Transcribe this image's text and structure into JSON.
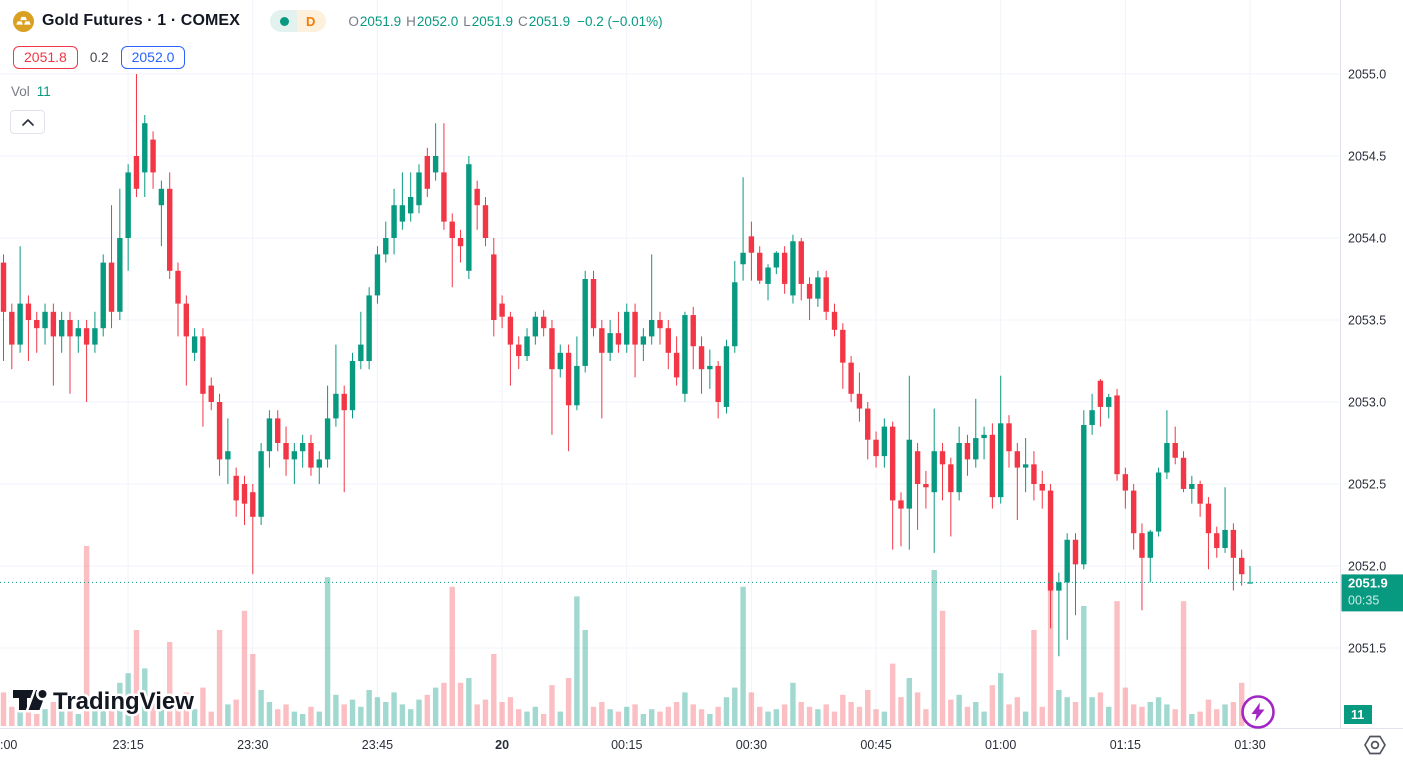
{
  "header": {
    "symbol_title": "Gold Futures · 1 · COMEX",
    "market_status_icon": "market-open-dot",
    "interval_badge": "D",
    "ohlc": {
      "o_label": "O",
      "o_value": "2051.9",
      "h_label": "H",
      "h_value": "2052.0",
      "l_label": "L",
      "l_value": "2051.9",
      "c_label": "C",
      "c_value": "2051.9",
      "change": "−0.2 (−0.01%)"
    },
    "sell_price": "2051.8",
    "spread": "0.2",
    "buy_price": "2052.0",
    "indicator_label": "Vol",
    "indicator_value": "11"
  },
  "footer": {
    "logo_text": "TradingView"
  },
  "price_axis": {
    "last_price_label": "2051.9",
    "countdown": "00:35",
    "volume_badge": "11"
  },
  "colors": {
    "up": "#089981",
    "down": "#f23645",
    "accent_sell": "#f23645",
    "accent_buy": "#2962ff",
    "gold_icon": "#D9A021",
    "interval_text": "#f57d00",
    "lightning_purple": "#a126c4",
    "grid": "#f0f3fa",
    "axis_text": "#2a2e39"
  },
  "chart_data": {
    "type": "candlestick",
    "title": "Gold Futures 1-minute chart with volume",
    "symbol": "Gold Futures",
    "interval": "1",
    "exchange": "COMEX",
    "legend": [
      "price candles",
      "Vol"
    ],
    "y_ticks": [
      2055.0,
      2054.5,
      2054.0,
      2053.5,
      2053.0,
      2052.5,
      2052.0,
      2051.5
    ],
    "ylim": [
      2051.4,
      2055.1
    ],
    "x_tick_labels": [
      {
        "index": 0,
        "label": ":00",
        "bold": false
      },
      {
        "index": 15,
        "label": "23:15",
        "bold": false
      },
      {
        "index": 30,
        "label": "23:30",
        "bold": false
      },
      {
        "index": 45,
        "label": "23:45",
        "bold": false
      },
      {
        "index": 60,
        "label": "20",
        "bold": true
      },
      {
        "index": 75,
        "label": "00:15",
        "bold": false
      },
      {
        "index": 90,
        "label": "00:30",
        "bold": false
      },
      {
        "index": 105,
        "label": "00:45",
        "bold": false
      },
      {
        "index": 120,
        "label": "01:00",
        "bold": false
      },
      {
        "index": 135,
        "label": "01:15",
        "bold": false
      },
      {
        "index": 150,
        "label": "01:30",
        "bold": false
      }
    ],
    "last_price": 2051.9,
    "countdown": "00:35",
    "last_volume": 11,
    "candles_format": [
      "open",
      "high",
      "low",
      "close",
      "volume"
    ],
    "candles": [
      [
        2053.85,
        2053.9,
        2053.25,
        2053.55,
        14
      ],
      [
        2053.55,
        2053.6,
        2053.2,
        2053.35,
        8
      ],
      [
        2053.35,
        2053.95,
        2053.3,
        2053.6,
        16
      ],
      [
        2053.6,
        2053.65,
        2053.25,
        2053.5,
        6
      ],
      [
        2053.5,
        2053.55,
        2053.3,
        2053.45,
        5
      ],
      [
        2053.45,
        2053.6,
        2053.35,
        2053.55,
        7
      ],
      [
        2053.55,
        2053.6,
        2053.1,
        2053.4,
        10
      ],
      [
        2053.4,
        2053.55,
        2053.3,
        2053.5,
        6
      ],
      [
        2053.5,
        2053.55,
        2053.05,
        2053.4,
        12
      ],
      [
        2053.4,
        2053.5,
        2053.3,
        2053.45,
        5
      ],
      [
        2053.45,
        2053.5,
        2053.0,
        2053.35,
        75
      ],
      [
        2053.35,
        2053.55,
        2053.3,
        2053.45,
        9
      ],
      [
        2053.45,
        2053.9,
        2053.4,
        2053.85,
        14
      ],
      [
        2053.85,
        2054.2,
        2053.45,
        2053.55,
        10
      ],
      [
        2053.55,
        2054.3,
        2053.5,
        2054.0,
        18
      ],
      [
        2054.0,
        2054.45,
        2053.8,
        2054.4,
        22
      ],
      [
        2054.5,
        2055.0,
        2054.25,
        2054.3,
        40
      ],
      [
        2054.4,
        2054.75,
        2054.25,
        2054.7,
        24
      ],
      [
        2054.6,
        2054.65,
        2054.3,
        2054.4,
        12
      ],
      [
        2054.2,
        2054.35,
        2053.95,
        2054.3,
        8
      ],
      [
        2054.3,
        2054.4,
        2053.75,
        2053.8,
        35
      ],
      [
        2053.8,
        2053.85,
        2053.4,
        2053.6,
        12
      ],
      [
        2053.6,
        2053.65,
        2053.1,
        2053.4,
        14
      ],
      [
        2053.3,
        2053.45,
        2053.25,
        2053.4,
        7
      ],
      [
        2053.4,
        2053.45,
        2052.85,
        2053.05,
        16
      ],
      [
        2053.1,
        2053.15,
        2052.95,
        2053.0,
        6
      ],
      [
        2053.0,
        2053.05,
        2052.55,
        2052.65,
        40
      ],
      [
        2052.65,
        2052.9,
        2052.5,
        2052.7,
        9
      ],
      [
        2052.55,
        2052.6,
        2052.3,
        2052.4,
        11
      ],
      [
        2052.5,
        2052.55,
        2052.25,
        2052.38,
        48
      ],
      [
        2052.45,
        2052.5,
        2051.95,
        2052.3,
        30
      ],
      [
        2052.3,
        2052.75,
        2052.25,
        2052.7,
        15
      ],
      [
        2052.7,
        2052.95,
        2052.6,
        2052.9,
        10
      ],
      [
        2052.9,
        2052.95,
        2052.7,
        2052.75,
        7
      ],
      [
        2052.75,
        2052.85,
        2052.55,
        2052.65,
        9
      ],
      [
        2052.65,
        2052.75,
        2052.5,
        2052.7,
        6
      ],
      [
        2052.7,
        2052.8,
        2052.6,
        2052.75,
        5
      ],
      [
        2052.75,
        2052.8,
        2052.55,
        2052.6,
        8
      ],
      [
        2052.6,
        2052.7,
        2052.5,
        2052.65,
        6
      ],
      [
        2052.65,
        2053.1,
        2052.6,
        2052.9,
        62
      ],
      [
        2052.9,
        2053.35,
        2052.85,
        2053.05,
        13
      ],
      [
        2053.05,
        2053.1,
        2052.45,
        2052.95,
        9
      ],
      [
        2052.95,
        2053.3,
        2052.9,
        2053.25,
        11
      ],
      [
        2053.25,
        2053.55,
        2053.2,
        2053.35,
        8
      ],
      [
        2053.25,
        2053.7,
        2053.2,
        2053.65,
        15
      ],
      [
        2053.65,
        2053.95,
        2053.6,
        2053.9,
        12
      ],
      [
        2053.9,
        2054.1,
        2053.85,
        2054.0,
        10
      ],
      [
        2054.0,
        2054.3,
        2053.9,
        2054.2,
        14
      ],
      [
        2054.1,
        2054.4,
        2054.05,
        2054.2,
        9
      ],
      [
        2054.15,
        2054.4,
        2054.1,
        2054.25,
        7
      ],
      [
        2054.2,
        2054.45,
        2054.15,
        2054.4,
        11
      ],
      [
        2054.5,
        2054.55,
        2054.25,
        2054.3,
        13
      ],
      [
        2054.4,
        2054.7,
        2054.35,
        2054.5,
        16
      ],
      [
        2054.4,
        2054.7,
        2054.05,
        2054.1,
        18
      ],
      [
        2054.1,
        2054.15,
        2053.7,
        2054.0,
        58
      ],
      [
        2054.0,
        2054.05,
        2053.85,
        2053.95,
        18
      ],
      [
        2053.8,
        2054.5,
        2053.75,
        2054.45,
        20
      ],
      [
        2054.3,
        2054.35,
        2054.05,
        2054.2,
        9
      ],
      [
        2054.2,
        2054.25,
        2053.95,
        2054.0,
        11
      ],
      [
        2053.9,
        2054.0,
        2053.4,
        2053.5,
        30
      ],
      [
        2053.6,
        2053.65,
        2053.45,
        2053.52,
        10
      ],
      [
        2053.52,
        2053.55,
        2053.1,
        2053.35,
        12
      ],
      [
        2053.35,
        2053.4,
        2053.2,
        2053.28,
        7
      ],
      [
        2053.28,
        2053.45,
        2053.25,
        2053.4,
        6
      ],
      [
        2053.4,
        2053.55,
        2053.35,
        2053.52,
        8
      ],
      [
        2053.52,
        2053.56,
        2053.4,
        2053.45,
        5
      ],
      [
        2053.45,
        2053.5,
        2052.8,
        2053.2,
        17
      ],
      [
        2053.2,
        2053.35,
        2053.15,
        2053.3,
        6
      ],
      [
        2053.3,
        2053.35,
        2052.7,
        2052.98,
        20
      ],
      [
        2052.98,
        2053.4,
        2052.95,
        2053.22,
        54
      ],
      [
        2053.22,
        2053.8,
        2053.18,
        2053.75,
        40
      ],
      [
        2053.75,
        2053.8,
        2053.4,
        2053.45,
        8
      ],
      [
        2053.45,
        2053.5,
        2052.9,
        2053.3,
        10
      ],
      [
        2053.3,
        2053.5,
        2053.25,
        2053.42,
        7
      ],
      [
        2053.42,
        2053.55,
        2053.3,
        2053.35,
        6
      ],
      [
        2053.35,
        2053.6,
        2053.3,
        2053.55,
        8
      ],
      [
        2053.55,
        2053.6,
        2053.15,
        2053.35,
        9
      ],
      [
        2053.35,
        2053.45,
        2053.25,
        2053.4,
        5
      ],
      [
        2053.4,
        2053.9,
        2053.35,
        2053.5,
        7
      ],
      [
        2053.5,
        2053.55,
        2053.35,
        2053.45,
        6
      ],
      [
        2053.45,
        2053.5,
        2053.2,
        2053.3,
        8
      ],
      [
        2053.3,
        2053.4,
        2053.1,
        2053.15,
        10
      ],
      [
        2053.05,
        2053.55,
        2053.0,
        2053.53,
        14
      ],
      [
        2053.53,
        2053.58,
        2053.2,
        2053.34,
        9
      ],
      [
        2053.34,
        2053.4,
        2053.05,
        2053.2,
        7
      ],
      [
        2053.2,
        2053.32,
        2053.08,
        2053.22,
        5
      ],
      [
        2053.22,
        2053.25,
        2052.9,
        2053.0,
        8
      ],
      [
        2052.97,
        2053.38,
        2052.93,
        2053.34,
        12
      ],
      [
        2053.34,
        2053.86,
        2053.3,
        2053.73,
        16
      ],
      [
        2053.84,
        2054.37,
        2053.74,
        2053.91,
        58
      ],
      [
        2054.01,
        2054.1,
        2053.74,
        2053.91,
        14
      ],
      [
        2053.91,
        2053.95,
        2053.72,
        2053.74,
        8
      ],
      [
        2053.72,
        2053.84,
        2053.62,
        2053.82,
        6
      ],
      [
        2053.82,
        2053.92,
        2053.78,
        2053.91,
        7
      ],
      [
        2053.91,
        2053.95,
        2053.66,
        2053.72,
        9
      ],
      [
        2053.65,
        2054.02,
        2053.6,
        2053.98,
        18
      ],
      [
        2053.98,
        2054.0,
        2053.62,
        2053.72,
        10
      ],
      [
        2053.72,
        2053.76,
        2053.5,
        2053.63,
        8
      ],
      [
        2053.63,
        2053.8,
        2053.58,
        2053.76,
        7
      ],
      [
        2053.76,
        2053.8,
        2053.5,
        2053.55,
        9
      ],
      [
        2053.55,
        2053.6,
        2053.4,
        2053.44,
        6
      ],
      [
        2053.44,
        2053.48,
        2053.08,
        2053.24,
        13
      ],
      [
        2053.24,
        2053.28,
        2053.0,
        2053.05,
        10
      ],
      [
        2053.05,
        2053.18,
        2052.88,
        2052.96,
        8
      ],
      [
        2052.96,
        2053.0,
        2052.65,
        2052.77,
        15
      ],
      [
        2052.77,
        2052.82,
        2052.6,
        2052.67,
        7
      ],
      [
        2052.67,
        2052.9,
        2052.6,
        2052.85,
        6
      ],
      [
        2052.85,
        2052.88,
        2052.1,
        2052.4,
        26
      ],
      [
        2052.4,
        2052.45,
        2052.12,
        2052.35,
        12
      ],
      [
        2052.35,
        2053.16,
        2052.1,
        2052.77,
        20
      ],
      [
        2052.7,
        2052.75,
        2052.22,
        2052.5,
        14
      ],
      [
        2052.5,
        2052.58,
        2052.35,
        2052.48,
        7
      ],
      [
        2052.45,
        2052.96,
        2052.08,
        2052.7,
        65
      ],
      [
        2052.7,
        2052.75,
        2052.4,
        2052.62,
        48
      ],
      [
        2052.62,
        2052.66,
        2052.18,
        2052.45,
        11
      ],
      [
        2052.45,
        2052.85,
        2052.4,
        2052.75,
        13
      ],
      [
        2052.75,
        2052.8,
        2052.55,
        2052.65,
        8
      ],
      [
        2052.65,
        2053.02,
        2052.6,
        2052.78,
        10
      ],
      [
        2052.78,
        2052.85,
        2052.65,
        2052.8,
        6
      ],
      [
        2052.8,
        2052.87,
        2052.35,
        2052.42,
        17
      ],
      [
        2052.42,
        2053.16,
        2052.38,
        2052.87,
        22
      ],
      [
        2052.87,
        2052.92,
        2052.6,
        2052.7,
        9
      ],
      [
        2052.7,
        2052.75,
        2052.28,
        2052.6,
        12
      ],
      [
        2052.6,
        2052.78,
        2052.45,
        2052.62,
        6
      ],
      [
        2052.62,
        2052.7,
        2052.4,
        2052.5,
        40
      ],
      [
        2052.5,
        2052.58,
        2052.35,
        2052.46,
        8
      ],
      [
        2052.46,
        2052.5,
        2051.62,
        2051.85,
        62
      ],
      [
        2051.85,
        2051.96,
        2051.45,
        2051.9,
        15
      ],
      [
        2051.9,
        2052.2,
        2051.55,
        2052.16,
        12
      ],
      [
        2052.16,
        2052.2,
        2051.7,
        2052.01,
        10
      ],
      [
        2052.01,
        2052.95,
        2051.98,
        2052.86,
        50
      ],
      [
        2052.86,
        2053.05,
        2052.8,
        2052.95,
        12
      ],
      [
        2053.13,
        2053.14,
        2052.85,
        2052.97,
        14
      ],
      [
        2052.97,
        2053.05,
        2052.9,
        2053.03,
        8
      ],
      [
        2053.04,
        2053.08,
        2052.52,
        2052.56,
        52
      ],
      [
        2052.56,
        2052.6,
        2052.35,
        2052.46,
        16
      ],
      [
        2052.46,
        2052.5,
        2052.1,
        2052.2,
        9
      ],
      [
        2052.2,
        2052.26,
        2051.73,
        2052.05,
        8
      ],
      [
        2052.05,
        2052.22,
        2051.9,
        2052.21,
        10
      ],
      [
        2052.21,
        2052.6,
        2052.18,
        2052.57,
        12
      ],
      [
        2052.57,
        2052.95,
        2052.53,
        2052.75,
        9
      ],
      [
        2052.75,
        2052.85,
        2052.62,
        2052.66,
        7
      ],
      [
        2052.66,
        2052.7,
        2052.45,
        2052.47,
        52
      ],
      [
        2052.47,
        2052.55,
        2052.38,
        2052.5,
        5
      ],
      [
        2052.5,
        2052.52,
        2052.3,
        2052.38,
        6
      ],
      [
        2052.38,
        2052.42,
        2051.98,
        2052.2,
        11
      ],
      [
        2052.2,
        2052.24,
        2052.05,
        2052.11,
        7
      ],
      [
        2052.11,
        2052.48,
        2052.08,
        2052.22,
        9
      ],
      [
        2052.22,
        2052.26,
        2051.85,
        2052.05,
        10
      ],
      [
        2052.05,
        2052.1,
        2051.88,
        2051.95,
        18
      ],
      [
        2051.9,
        2052.0,
        2051.9,
        2051.9,
        11
      ]
    ]
  }
}
